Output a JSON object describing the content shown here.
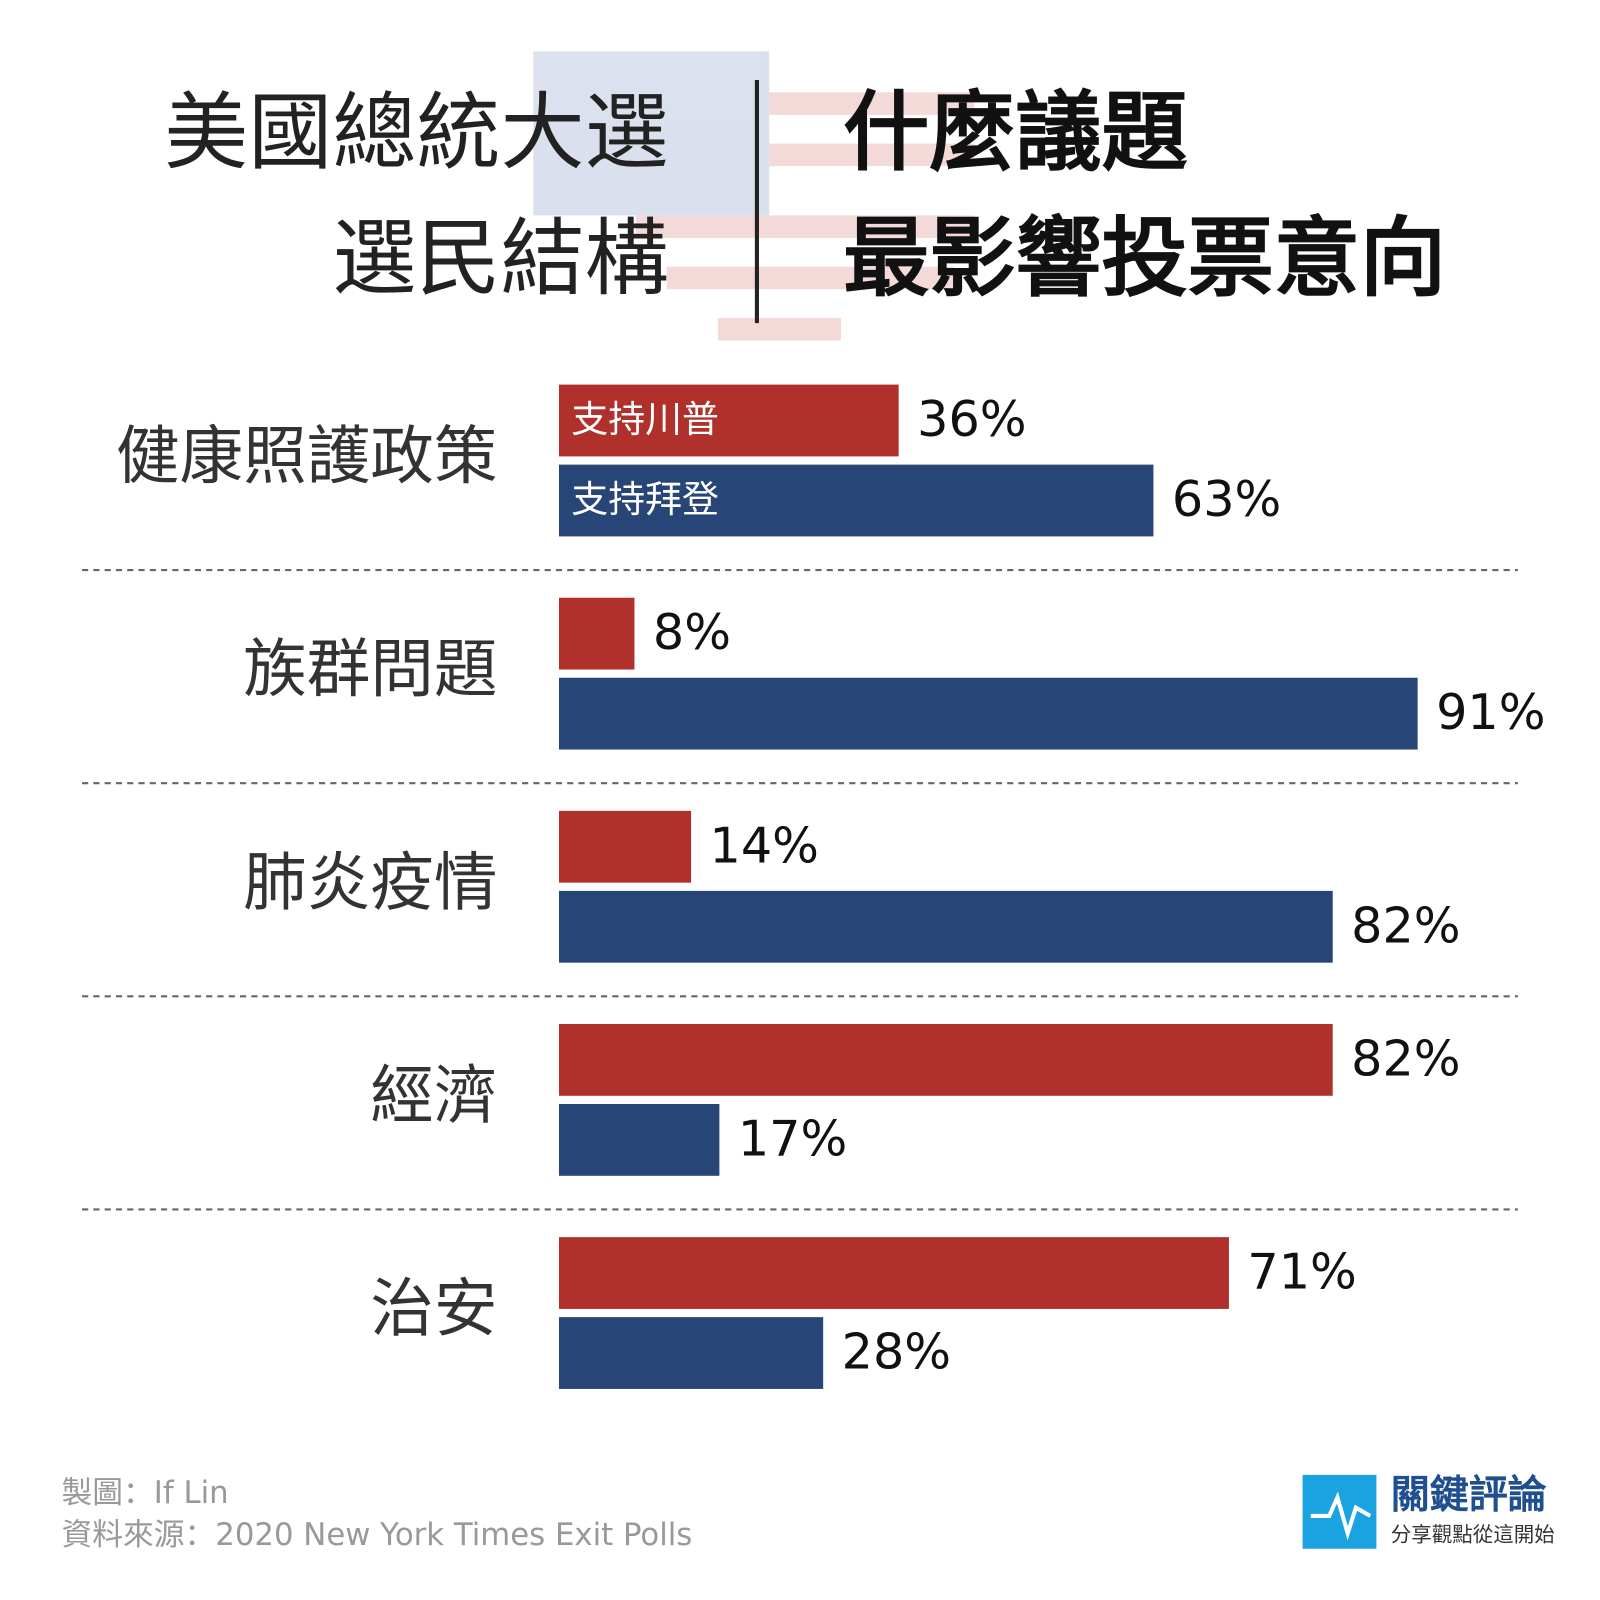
{
  "chart_data": {
    "type": "bar",
    "orientation": "horizontal",
    "title_left": [
      "美國總統大選",
      "選民結構"
    ],
    "title_right": [
      "什麼議題",
      "最影響投票意向"
    ],
    "categories": [
      "健康照護政策",
      "族群問題",
      "肺炎疫情",
      "經濟",
      "治安"
    ],
    "series": [
      {
        "name": "支持川普",
        "color": "#b0312c",
        "values": [
          36,
          8,
          14,
          82,
          71
        ],
        "value_labels": [
          "36%",
          "8%",
          "14%",
          "82%",
          "71%"
        ]
      },
      {
        "name": "支持拜登",
        "color": "#274577",
        "values": [
          63,
          91,
          82,
          17,
          28
        ],
        "value_labels": [
          "63%",
          "91%",
          "82%",
          "17%",
          "28%"
        ]
      }
    ],
    "footer": [
      "製圖：If Lin",
      "資料來源：2020 New York Times Exit Polls"
    ],
    "logo": {
      "name": "關鍵評論",
      "slogan": "分享觀點從這開始"
    }
  }
}
